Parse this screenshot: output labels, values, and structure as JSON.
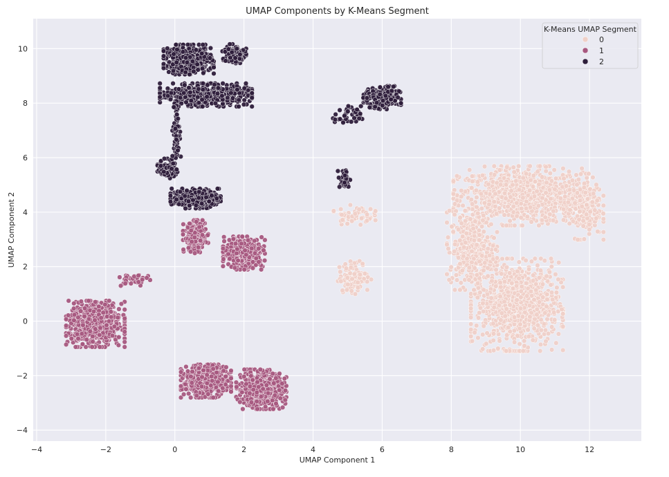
{
  "chart_data": {
    "type": "scatter",
    "title": "UMAP Components by K-Means Segment",
    "xlabel": "UMAP Component 1",
    "ylabel": "UMAP Component 2",
    "xlim": [
      -4.1,
      13.5
    ],
    "ylim": [
      -4.4,
      11.1
    ],
    "xticks": [
      -4,
      -2,
      0,
      2,
      4,
      6,
      8,
      10,
      12
    ],
    "yticks": [
      -4,
      -2,
      0,
      2,
      4,
      6,
      8,
      10
    ],
    "grid": true,
    "background": "#eaeaf2",
    "legend": {
      "title": "K-Means UMAP Segment",
      "placement": "top-right",
      "entries": [
        "0",
        "1",
        "2"
      ]
    },
    "series": [
      {
        "name": "0",
        "color": "#efd0c8",
        "clusters": [
          {
            "center": [
              10.0,
              4.6
            ],
            "spread": [
              1.6,
              0.9
            ],
            "count": 900
          },
          {
            "center": [
              9.9,
              0.6
            ],
            "spread": [
              1.1,
              1.4
            ],
            "count": 900
          },
          {
            "center": [
              8.6,
              2.6
            ],
            "spread": [
              0.6,
              1.2
            ],
            "count": 350
          },
          {
            "center": [
              11.8,
              4.2
            ],
            "spread": [
              0.5,
              1.0
            ],
            "count": 250
          },
          {
            "center": [
              5.2,
              1.6
            ],
            "spread": [
              0.4,
              0.5
            ],
            "count": 120
          },
          {
            "center": [
              5.2,
              3.9
            ],
            "spread": [
              0.5,
              0.3
            ],
            "count": 60
          }
        ]
      },
      {
        "name": "1",
        "color": "#a7587f",
        "clusters": [
          {
            "center": [
              -2.3,
              -0.1
            ],
            "spread": [
              0.7,
              0.7
            ],
            "count": 700
          },
          {
            "center": [
              0.9,
              -2.2
            ],
            "spread": [
              0.6,
              0.5
            ],
            "count": 500
          },
          {
            "center": [
              2.5,
              -2.5
            ],
            "spread": [
              0.6,
              0.6
            ],
            "count": 500
          },
          {
            "center": [
              2.0,
              2.5
            ],
            "spread": [
              0.5,
              0.5
            ],
            "count": 400
          },
          {
            "center": [
              0.6,
              3.1
            ],
            "spread": [
              0.3,
              0.5
            ],
            "count": 200
          },
          {
            "center": [
              -1.2,
              1.5
            ],
            "spread": [
              0.4,
              0.2
            ],
            "count": 40
          }
        ]
      },
      {
        "name": "2",
        "color": "#2e1e3b",
        "clusters": [
          {
            "center": [
              0.4,
              9.6
            ],
            "spread": [
              0.6,
              0.45
            ],
            "count": 500
          },
          {
            "center": [
              1.7,
              9.8
            ],
            "spread": [
              0.3,
              0.3
            ],
            "count": 150
          },
          {
            "center": [
              0.9,
              8.3
            ],
            "spread": [
              1.1,
              0.35
            ],
            "count": 500
          },
          {
            "center": [
              0.6,
              4.5
            ],
            "spread": [
              0.6,
              0.3
            ],
            "count": 300
          },
          {
            "center": [
              -0.2,
              5.6
            ],
            "spread": [
              0.25,
              0.3
            ],
            "count": 80
          },
          {
            "center": [
              0.05,
              6.9
            ],
            "spread": [
              0.1,
              0.9
            ],
            "count": 60
          },
          {
            "center": [
              6.0,
              8.2
            ],
            "spread": [
              0.45,
              0.35
            ],
            "count": 250
          },
          {
            "center": [
              5.0,
              7.5
            ],
            "spread": [
              0.35,
              0.35
            ],
            "count": 40
          },
          {
            "center": [
              4.9,
              5.2
            ],
            "spread": [
              0.15,
              0.35
            ],
            "count": 40
          }
        ]
      }
    ]
  }
}
